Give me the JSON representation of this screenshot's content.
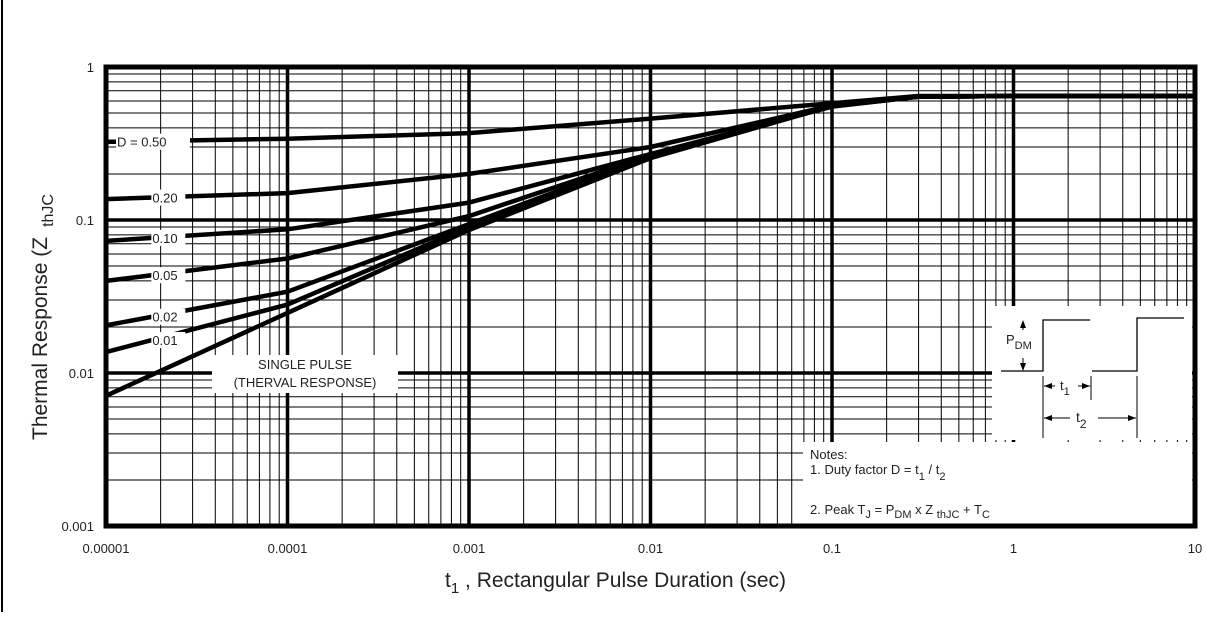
{
  "chart_data": {
    "type": "line",
    "title": "",
    "xlabel": {
      "main": "t",
      "sub": "1",
      "rest": " , Rectangular Pulse Duration (sec)"
    },
    "ylabel": {
      "main": "Thermal Response (Z",
      "sub": "thJC"
    },
    "x_scale": "log",
    "y_scale": "log",
    "xlim": [
      1e-05,
      10
    ],
    "ylim": [
      0.001,
      1
    ],
    "grid": true,
    "x_ticks": [
      "0.00001",
      "0.0001",
      "0.001",
      "0.01",
      "0.1",
      "1",
      "10"
    ],
    "y_ticks": [
      "1",
      "0.1",
      "0.01",
      "0.001"
    ],
    "x": [
      1e-05,
      0.0001,
      0.001,
      0.01,
      0.1,
      0.3,
      1,
      10
    ],
    "series": [
      {
        "name": "D = 0.50",
        "values": [
          0.324,
          0.34,
          0.37,
          0.46,
          0.58,
          0.646,
          0.646,
          0.646
        ]
      },
      {
        "name": "0.20",
        "values": [
          0.137,
          0.15,
          0.2,
          0.3,
          0.56,
          0.64,
          0.646,
          0.646
        ]
      },
      {
        "name": "0.10",
        "values": [
          0.073,
          0.087,
          0.13,
          0.27,
          0.55,
          0.64,
          0.646,
          0.646
        ]
      },
      {
        "name": "0.05",
        "values": [
          0.04,
          0.056,
          0.106,
          0.265,
          0.555,
          0.64,
          0.646,
          0.646
        ]
      },
      {
        "name": "0.02",
        "values": [
          0.0205,
          0.034,
          0.094,
          0.26,
          0.555,
          0.64,
          0.646,
          0.646
        ]
      },
      {
        "name": "0.01",
        "values": [
          0.0137,
          0.028,
          0.09,
          0.258,
          0.556,
          0.64,
          0.646,
          0.646
        ]
      },
      {
        "name": "SINGLE PULSE",
        "values": [
          0.0071,
          0.0247,
          0.086,
          0.254,
          0.556,
          0.64,
          0.646,
          0.646
        ]
      }
    ],
    "annotations": {
      "single_pulse": [
        "SINGLE PULSE",
        "(THERVAL RESPONSE)"
      ],
      "notes_title": "Notes:",
      "note1": {
        "text": "1. Duty factor D =  t",
        "s1": "1",
        "mid": " / t",
        "s2": "2"
      },
      "note2": {
        "a": "2. Peak T",
        "s1": "J",
        "b": " = P",
        "s2": "DM",
        "c": " x Z ",
        "s3": "thJC",
        "d": " + T",
        "s4": "C"
      },
      "diagram": {
        "pdm": "P",
        "pdm_sub": "DM",
        "t1": "t",
        "t1_sub": "1",
        "t2": "t",
        "t2_sub": "2"
      }
    }
  }
}
